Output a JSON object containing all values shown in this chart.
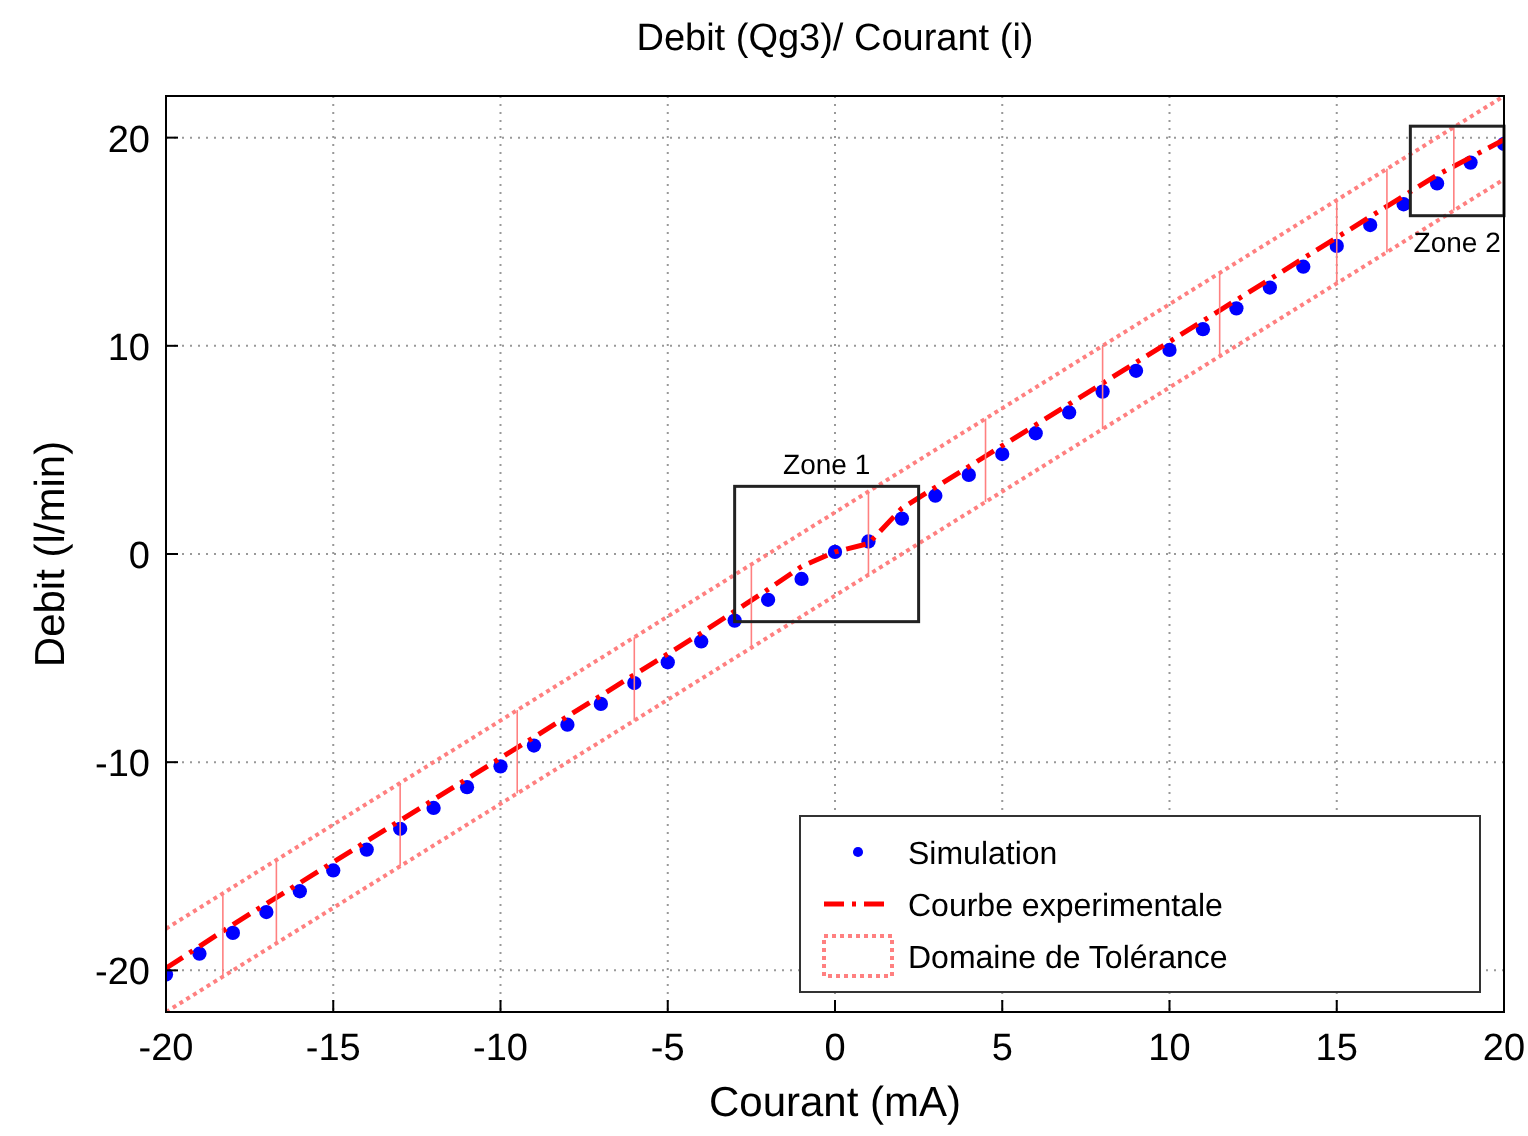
{
  "chart_data": {
    "type": "line",
    "title": "Debit (Qg3)/ Courant (i)",
    "xlabel": "Courant (mA)",
    "ylabel": "Debit (l/min)",
    "xlim": [
      -20,
      20
    ],
    "xticks": [
      -20,
      -15,
      -10,
      -5,
      0,
      5,
      10,
      15,
      20
    ],
    "ylim": [
      -22,
      22
    ],
    "yticks": [
      -20,
      -10,
      0,
      10,
      20
    ],
    "grid": true,
    "legend": "bottom right",
    "series": [
      {
        "name": "Simulation",
        "type": "scatter",
        "marker": "circle",
        "color": "#0000ff",
        "x": [
          -20,
          -19,
          -18,
          -17,
          -16,
          -15,
          -14,
          -13,
          -12,
          -11,
          -10,
          -9,
          -8,
          -7,
          -6,
          -5,
          -4,
          -3,
          -2,
          -1,
          0,
          1,
          2,
          3,
          4,
          5,
          6,
          7,
          8,
          9,
          10,
          11,
          12,
          13,
          14,
          15,
          16,
          17,
          18,
          19,
          20
        ],
        "values": [
          -20.2,
          -19.2,
          -18.2,
          -17.2,
          -16.2,
          -15.2,
          -14.2,
          -13.2,
          -12.2,
          -11.2,
          -10.2,
          -9.2,
          -8.2,
          -7.2,
          -6.2,
          -5.2,
          -4.2,
          -3.2,
          -2.2,
          -1.2,
          0.1,
          0.6,
          1.7,
          2.8,
          3.8,
          4.8,
          5.8,
          6.8,
          7.8,
          8.8,
          9.8,
          10.8,
          11.8,
          12.8,
          13.8,
          14.8,
          15.8,
          16.8,
          17.8,
          18.8,
          19.7
        ]
      },
      {
        "name": "Courbe experimentale",
        "line_style": "dashed",
        "color": "#ff0000",
        "x": [
          -20,
          -18,
          -16,
          -14,
          -12,
          -10,
          -8,
          -6,
          -4,
          -2,
          -1,
          0,
          1,
          2,
          4,
          6,
          8,
          10,
          12,
          14,
          16,
          18,
          20
        ],
        "values": [
          -19.9,
          -17.8,
          -15.8,
          -13.8,
          -11.8,
          -9.8,
          -7.8,
          -5.8,
          -3.8,
          -1.7,
          -0.6,
          0.1,
          0.5,
          2.2,
          4.2,
          6.2,
          8.2,
          10.2,
          12.2,
          14.2,
          16.2,
          18.2,
          19.9
        ]
      },
      {
        "name": "Domaine de Tolérance",
        "line_style": "dotted",
        "color": "#ff8080",
        "x": [
          -20,
          -18.3,
          -16.7,
          -13,
          -9.5,
          -6,
          -2.5,
          1,
          4.5,
          8,
          11.5,
          15,
          16.5,
          18.5,
          20
        ],
        "values": [
          -18,
          -16.3,
          -14.7,
          -11,
          -7.5,
          -4,
          -0.5,
          3,
          6.5,
          10,
          13.5,
          17,
          18.5,
          20.5,
          22
        ],
        "errors": [
          [
            -22,
            -18
          ],
          [
            -20.3,
            -16.3
          ],
          [
            -18.7,
            -14.7
          ],
          [
            -15,
            -11
          ],
          [
            -11.5,
            -7.5
          ],
          [
            -8,
            -4
          ],
          [
            -4.5,
            -0.5
          ],
          [
            -1,
            3
          ],
          [
            2.5,
            6.5
          ],
          [
            6,
            10
          ],
          [
            9.5,
            13.5
          ],
          [
            13,
            17
          ],
          [
            14.5,
            18.5
          ],
          [
            16.5,
            20.5
          ],
          [
            18,
            22
          ]
        ]
      },
      {
        "line_style": "dotted",
        "color": "#ff8080",
        "x": [
          -20,
          -18.3,
          -16.7,
          -13,
          -9.5,
          -6,
          -2.5,
          1,
          4.5,
          8,
          11.5,
          15,
          16.5,
          18.5,
          20
        ],
        "values": [
          -22,
          -20.3,
          -18.7,
          -15,
          -11.5,
          -8,
          -4.5,
          -1,
          2.5,
          6,
          9.5,
          13,
          14.5,
          16.5,
          18
        ]
      }
    ],
    "annotations": [
      {
        "text": "Zone 1",
        "x": -0.25,
        "y": 0
      },
      {
        "text": "Zone 2",
        "x": 18.6,
        "y": 18.4
      }
    ]
  }
}
